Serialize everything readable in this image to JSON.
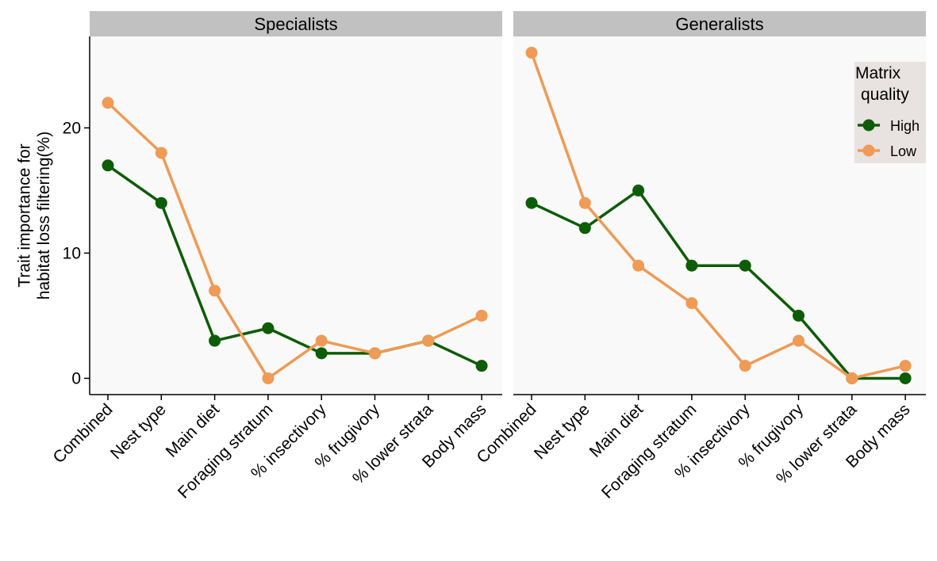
{
  "chart_data": {
    "type": "line",
    "categories": [
      "Combined",
      "Nest type",
      "Main diet",
      "Foraging stratum",
      "% insectivory",
      "% frugivory",
      "% lower strata",
      "Body mass"
    ],
    "ylabel_lines": [
      "Trait importance for",
      "habitat loss filtering(%)"
    ],
    "ylim": [
      -1.3,
      27.3
    ],
    "yticks": [
      0,
      10,
      20
    ],
    "grid": false,
    "legend": {
      "title_lines": [
        "Matrix",
        "quality"
      ],
      "placement": "top-right",
      "entries": [
        "High",
        "Low"
      ]
    },
    "colors": {
      "High": "#0d5c06",
      "Low": "#ef9a55"
    },
    "panels": [
      {
        "title": "Specialists",
        "series": [
          {
            "name": "High",
            "values": [
              17,
              14,
              3,
              4,
              2,
              2,
              3,
              1
            ]
          },
          {
            "name": "Low",
            "values": [
              22,
              18,
              7,
              0,
              3,
              2,
              3,
              5
            ]
          }
        ]
      },
      {
        "title": "Generalists",
        "series": [
          {
            "name": "High",
            "values": [
              14,
              12,
              15,
              9,
              9,
              5,
              0,
              0
            ]
          },
          {
            "name": "Low",
            "values": [
              26,
              14,
              9,
              6,
              1,
              3,
              0,
              1
            ]
          }
        ]
      }
    ]
  }
}
